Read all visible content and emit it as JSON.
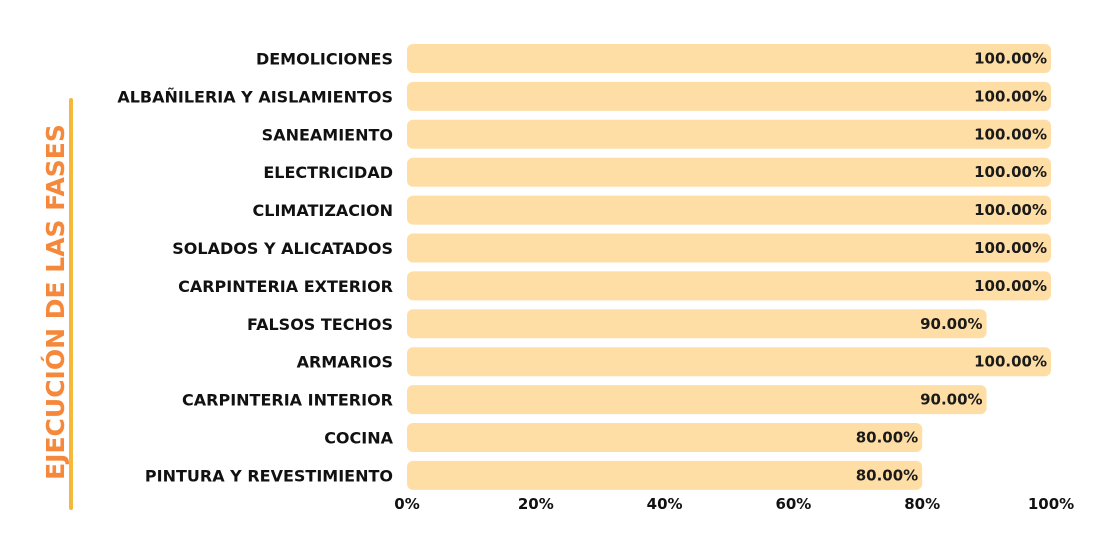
{
  "chart_data": {
    "type": "bar",
    "orientation": "horizontal",
    "title": "EJECUCIÓN DE LAS FASES",
    "categories": [
      "DEMOLICIONES",
      "ALBAÑILERIA Y AISLAMIENTOS",
      "SANEAMIENTO",
      "ELECTRICIDAD",
      "CLIMATIZACION",
      "SOLADOS Y ALICATADOS",
      "CARPINTERIA EXTERIOR",
      "FALSOS TECHOS",
      "ARMARIOS",
      "CARPINTERIA INTERIOR",
      "COCINA",
      "PINTURA Y REVESTIMIENTO"
    ],
    "values": [
      100,
      100,
      100,
      100,
      100,
      100,
      100,
      90,
      100,
      90,
      80,
      80
    ],
    "value_labels": [
      "100.00%",
      "100.00%",
      "100.00%",
      "100.00%",
      "100.00%",
      "100.00%",
      "100.00%",
      "90.00%",
      "100.00%",
      "90.00%",
      "80.00%",
      "80.00%"
    ],
    "xlim": [
      0,
      100
    ],
    "xticks": [
      "0%",
      "20%",
      "40%",
      "60%",
      "80%",
      "100%"
    ],
    "xtick_values": [
      0,
      20,
      40,
      60,
      80,
      100
    ],
    "grid": false,
    "legend": "none",
    "colors": {
      "bar": "#FFDEA6",
      "title": "#F5883A",
      "title_rule": "#F5B83A"
    }
  }
}
